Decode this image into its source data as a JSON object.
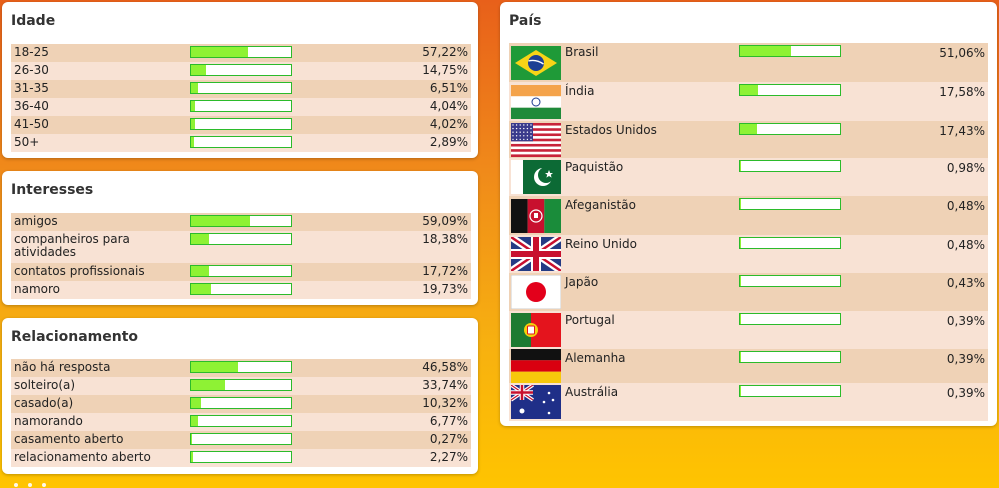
{
  "age": {
    "title": "Idade",
    "rows": [
      {
        "label": "18-25",
        "pct": "57,22%",
        "value": 57.22
      },
      {
        "label": "26-30",
        "pct": "14,75%",
        "value": 14.75
      },
      {
        "label": "31-35",
        "pct": "6,51%",
        "value": 6.51
      },
      {
        "label": "36-40",
        "pct": "4,04%",
        "value": 4.04
      },
      {
        "label": "41-50",
        "pct": "4,02%",
        "value": 4.02
      },
      {
        "label": "50+",
        "pct": "2,89%",
        "value": 2.89
      }
    ]
  },
  "interests": {
    "title": "Interesses",
    "rows": [
      {
        "label": "amigos",
        "pct": "59,09%",
        "value": 59.09
      },
      {
        "label": "companheiros para atividades",
        "pct": "18,38%",
        "value": 18.38
      },
      {
        "label": "contatos profissionais",
        "pct": "17,72%",
        "value": 17.72
      },
      {
        "label": "namoro",
        "pct": "19,73%",
        "value": 19.73
      }
    ]
  },
  "relationship": {
    "title": "Relacionamento",
    "rows": [
      {
        "label": "não há resposta",
        "pct": "46,58%",
        "value": 46.58
      },
      {
        "label": "solteiro(a)",
        "pct": "33,74%",
        "value": 33.74
      },
      {
        "label": "casado(a)",
        "pct": "10,32%",
        "value": 10.32
      },
      {
        "label": "namorando",
        "pct": "6,77%",
        "value": 6.77
      },
      {
        "label": "casamento aberto",
        "pct": "0,27%",
        "value": 0.27
      },
      {
        "label": "relacionamento aberto",
        "pct": "2,27%",
        "value": 2.27
      }
    ]
  },
  "country": {
    "title": "País",
    "rows": [
      {
        "label": "Brasil",
        "pct": "51,06%",
        "value": 51.06,
        "flag": "brazil-flag-icon"
      },
      {
        "label": "Índia",
        "pct": "17,58%",
        "value": 17.58,
        "flag": "india-flag-icon"
      },
      {
        "label": "Estados Unidos",
        "pct": "17,43%",
        "value": 17.43,
        "flag": "usa-flag-icon"
      },
      {
        "label": "Paquistão",
        "pct": "0,98%",
        "value": 0.98,
        "flag": "pakistan-flag-icon"
      },
      {
        "label": "Afeganistão",
        "pct": "0,48%",
        "value": 0.48,
        "flag": "afghanistan-flag-icon"
      },
      {
        "label": "Reino Unido",
        "pct": "0,48%",
        "value": 0.48,
        "flag": "uk-flag-icon"
      },
      {
        "label": "Japão",
        "pct": "0,43%",
        "value": 0.43,
        "flag": "japan-flag-icon"
      },
      {
        "label": "Portugal",
        "pct": "0,39%",
        "value": 0.39,
        "flag": "portugal-flag-icon"
      },
      {
        "label": "Alemanha",
        "pct": "0,39%",
        "value": 0.39,
        "flag": "germany-flag-icon"
      },
      {
        "label": "Austrália",
        "pct": "0,39%",
        "value": 0.39,
        "flag": "australia-flag-icon"
      }
    ]
  },
  "colors": {
    "bar_fill": "#8ef234",
    "bar_border": "#2bbb2b",
    "row_odd": "#efd2b6",
    "row_even": "#f8e2d4"
  }
}
